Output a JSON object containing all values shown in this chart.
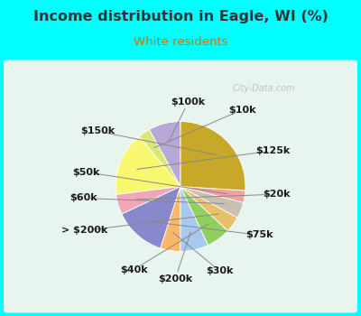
{
  "title": "Income distribution in Eagle, WI (%)",
  "subtitle": "White residents",
  "title_color": "#333333",
  "subtitle_color": "#cc7700",
  "bg_outer": "#00ffff",
  "bg_inner_color": "#e8f5ee",
  "watermark": "City-Data.com",
  "labels": [
    "$100k",
    "$10k",
    "$125k",
    "$20k",
    "$75k",
    "$30k",
    "$200k",
    "$40k",
    "> $200k",
    "$60k",
    "$50k",
    "$150k"
  ],
  "values": [
    8,
    3,
    16,
    5,
    13,
    5,
    7,
    6,
    4,
    4,
    3,
    26
  ],
  "colors": [
    "#b8a8d8",
    "#d8e878",
    "#f8f870",
    "#f0a8b8",
    "#8888cc",
    "#f8b868",
    "#a8c8f0",
    "#90d060",
    "#e8c068",
    "#c8c0b0",
    "#f0a0a0",
    "#c8a828"
  ],
  "label_fontsize": 8,
  "startangle": 90
}
